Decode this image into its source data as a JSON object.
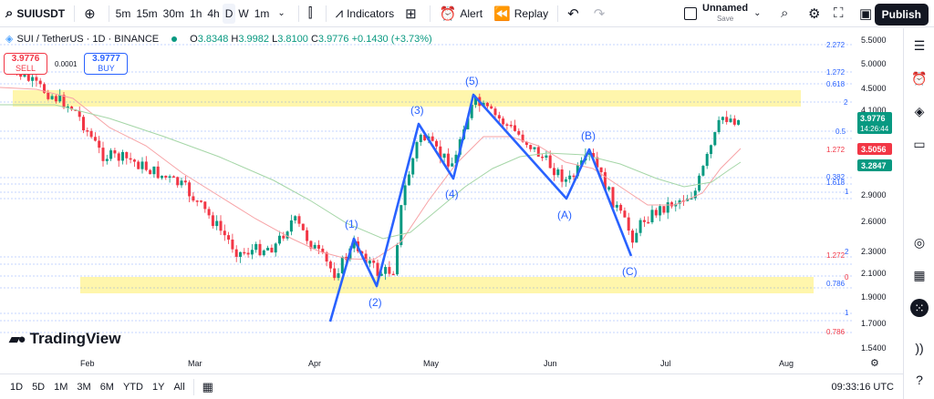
{
  "toolbar": {
    "symbol": "SUIUSDT",
    "add_icon": "plus-circle-icon",
    "timeframes": [
      "5m",
      "15m",
      "30m",
      "1h",
      "4h",
      "D",
      "W",
      "1m"
    ],
    "active_timeframe": "D",
    "indicators_label": "Indicators",
    "alert_label": "Alert",
    "replay_label": "Replay",
    "layout_name": "Unnamed",
    "layout_sub": "Save",
    "publish_label": "Publish"
  },
  "legend": {
    "ticker": "SUI / TetherUS · 1D · BINANCE",
    "o_label": "O",
    "o": "3.8348",
    "h_label": "H",
    "h": "3.9982",
    "l_label": "L",
    "l": "3.8100",
    "c_label": "C",
    "c": "3.9776",
    "change": "+0.1430 (+3.73%)"
  },
  "order": {
    "sell_price": "3.9776",
    "sell_label": "SELL",
    "spread": "0.0001",
    "buy_price": "3.9777",
    "buy_label": "BUY"
  },
  "brand": {
    "name": "TradingView"
  },
  "price_axis": {
    "ticks": [
      "5.5000",
      "5.0000",
      "4.5000",
      "4.1000",
      "3.2847",
      "2.9000",
      "2.6000",
      "2.3000",
      "2.1000",
      "1.9000",
      "1.7000",
      "1.5400"
    ],
    "current_price": "3.9776",
    "countdown": "14:26:44",
    "ma_fast": "3.5056",
    "ma_slow": "3.2847"
  },
  "fib_labels": {
    "l2272_top": "2.272",
    "l1272_top": "1.272",
    "l0618_top": "0.618",
    "l2": "2",
    "l05": "0.5",
    "l1272_mid": "1.272",
    "l0382": "0.382",
    "l1618": "1.618",
    "l1_mid": "1",
    "l1272_low": "1.272",
    "l2_low": "2",
    "l0": "0",
    "l0786": "0.786",
    "l1_low": "1",
    "l0786_low": "0.786"
  },
  "time_axis": [
    "Feb",
    "Mar",
    "Apr",
    "May",
    "Jun",
    "Jul",
    "Aug"
  ],
  "wave_labels": [
    "(1)",
    "(2)",
    "(3)",
    "(4)",
    "(5)",
    "(A)",
    "(B)",
    "(C)"
  ],
  "bottom": {
    "ranges": [
      "1D",
      "5D",
      "1M",
      "3M",
      "6M",
      "YTD",
      "1Y",
      "All"
    ],
    "clock": "09:33:16 UTC"
  },
  "colors": {
    "up": "#089981",
    "down": "#f23645",
    "wave": "#2962ff",
    "zone": "#fff59d",
    "ma_fast": "#f7a3a6",
    "ma_slow": "#a5d6a7"
  },
  "chart_data": {
    "type": "candlestick",
    "wave_points": [
      {
        "label": "(1)",
        "price": 2.42
      },
      {
        "label": "(2)",
        "price": 1.97
      },
      {
        "label": "(3)",
        "price": 3.75
      },
      {
        "label": "(4)",
        "price": 3.05
      },
      {
        "label": "(5)",
        "price": 4.35
      },
      {
        "label": "(A)",
        "price": 2.88
      },
      {
        "label": "(B)",
        "price": 3.55
      },
      {
        "label": "(C)",
        "price": 2.25
      }
    ],
    "resistance_zone": [
      4.22,
      4.62
    ],
    "support_zone": [
      1.95,
      2.06
    ]
  }
}
